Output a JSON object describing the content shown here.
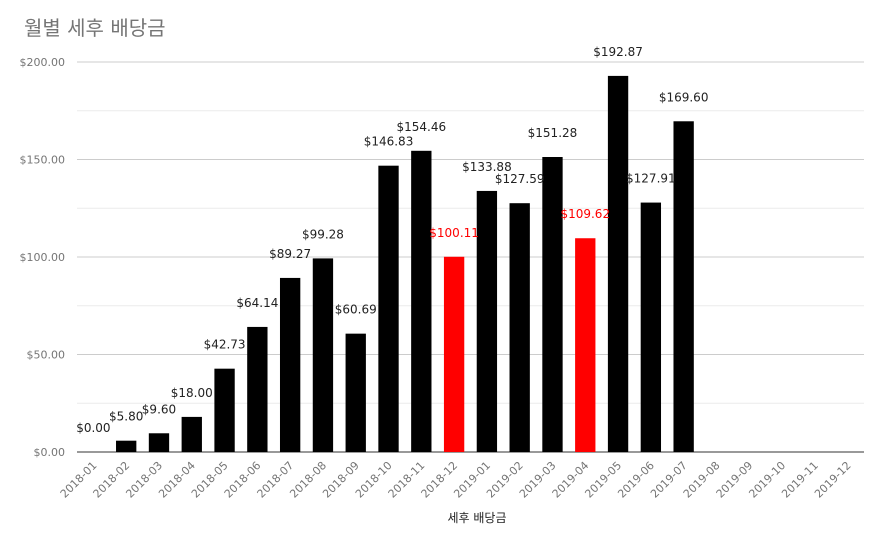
{
  "chart_data": {
    "type": "bar",
    "title": "월별 세후 배당금",
    "xlabel": "세후 배당금",
    "ylabel": "",
    "ylim": [
      0,
      200
    ],
    "yticks": [
      "$0.00",
      "$50.00",
      "$100.00",
      "$150.00",
      "$200.00"
    ],
    "grid": true,
    "legend": "none",
    "categories": [
      "2018-01",
      "2018-02",
      "2018-03",
      "2018-04",
      "2018-05",
      "2018-06",
      "2018-07",
      "2018-08",
      "2018-09",
      "2018-10",
      "2018-11",
      "2018-12",
      "2019-01",
      "2019-02",
      "2019-03",
      "2019-04",
      "2019-05",
      "2019-06",
      "2019-07",
      "2019-08",
      "2019-09",
      "2019-10",
      "2019-11",
      "2019-12"
    ],
    "values": [
      0.0,
      5.8,
      9.6,
      18.0,
      42.73,
      64.14,
      89.27,
      99.28,
      60.69,
      146.83,
      154.46,
      100.11,
      133.88,
      127.59,
      151.28,
      109.62,
      192.87,
      127.91,
      169.6,
      null,
      null,
      null,
      null,
      null
    ],
    "labels": [
      "$0.00",
      "$5.80",
      "$9.60",
      "$18.00",
      "$42.73",
      "$64.14",
      "$89.27",
      "$99.28",
      "$60.69",
      "$146.83",
      "$154.46",
      "$100.11",
      "$133.88",
      "$127.59",
      "$151.28",
      "$109.62",
      "$192.87",
      "$127.91",
      "$169.60",
      "",
      "",
      "",
      "",
      ""
    ],
    "colors": {
      "default": "#000000",
      "highlight": "#ff0000",
      "grid_major": "#cccccc",
      "grid_minor": "#ececec",
      "label_default": "#222222",
      "label_highlight": "#ff0000"
    },
    "highlighted_categories": [
      "2018-12",
      "2019-04"
    ]
  }
}
